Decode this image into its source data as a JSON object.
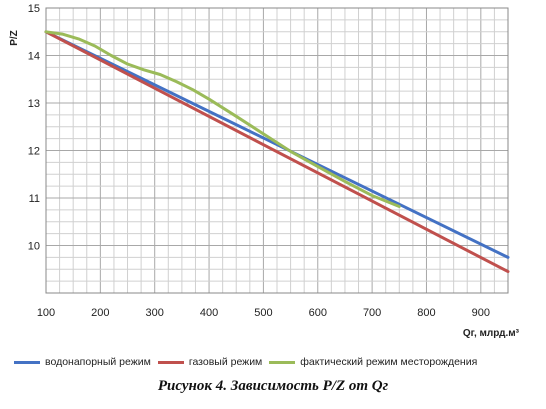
{
  "chart_data": {
    "type": "line",
    "ylabel": "P/Z",
    "xlabel": "Qг, млрд.м³",
    "xlim": [
      100,
      950
    ],
    "ylim": [
      9,
      15
    ],
    "x_ticks": [
      "100",
      "200",
      "300",
      "400",
      "500",
      "600",
      "700",
      "800",
      "900"
    ],
    "y_ticks": [
      "10",
      "11",
      "12",
      "13",
      "14",
      "15"
    ],
    "grid": true,
    "legend_position": "bottom",
    "series": [
      {
        "name": "водонапорный режим",
        "color": "#4472C4",
        "points": [
          [
            100,
            14.5
          ],
          [
            950,
            9.75
          ]
        ]
      },
      {
        "name": "газовый режим",
        "color": "#C0504D",
        "points": [
          [
            100,
            14.5
          ],
          [
            950,
            9.45
          ]
        ]
      },
      {
        "name": "фактический режим месторождения",
        "color": "#9BBB59",
        "points": [
          [
            100,
            14.5
          ],
          [
            130,
            14.45
          ],
          [
            160,
            14.35
          ],
          [
            190,
            14.2
          ],
          [
            220,
            14.0
          ],
          [
            250,
            13.82
          ],
          [
            280,
            13.7
          ],
          [
            310,
            13.6
          ],
          [
            340,
            13.45
          ],
          [
            370,
            13.28
          ],
          [
            400,
            13.08
          ],
          [
            450,
            12.72
          ],
          [
            500,
            12.35
          ],
          [
            550,
            11.98
          ],
          [
            600,
            11.66
          ],
          [
            650,
            11.35
          ],
          [
            700,
            11.05
          ],
          [
            750,
            10.82
          ]
        ]
      }
    ]
  },
  "caption": "Рисунок 4. Зависимость P/Z от Qг"
}
